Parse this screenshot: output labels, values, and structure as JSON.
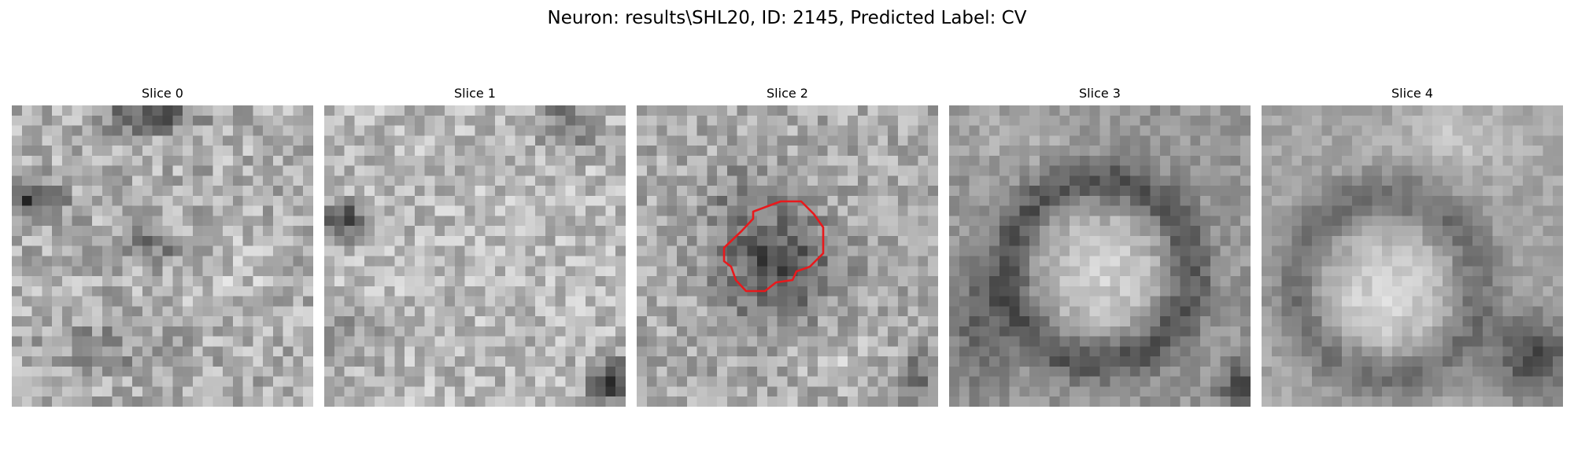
{
  "figure": {
    "title": "Neuron: results\\SHL20, ID: 2145, Predicted Label: CV"
  },
  "panels": [
    {
      "title": "Slice 0",
      "has_contour": false
    },
    {
      "title": "Slice 1",
      "has_contour": false
    },
    {
      "title": "Slice 2",
      "has_contour": true
    },
    {
      "title": "Slice 3",
      "has_contour": false
    },
    {
      "title": "Slice 4",
      "has_contour": false
    }
  ],
  "colors": {
    "contour": "#e8191c",
    "colormap": "gray"
  }
}
